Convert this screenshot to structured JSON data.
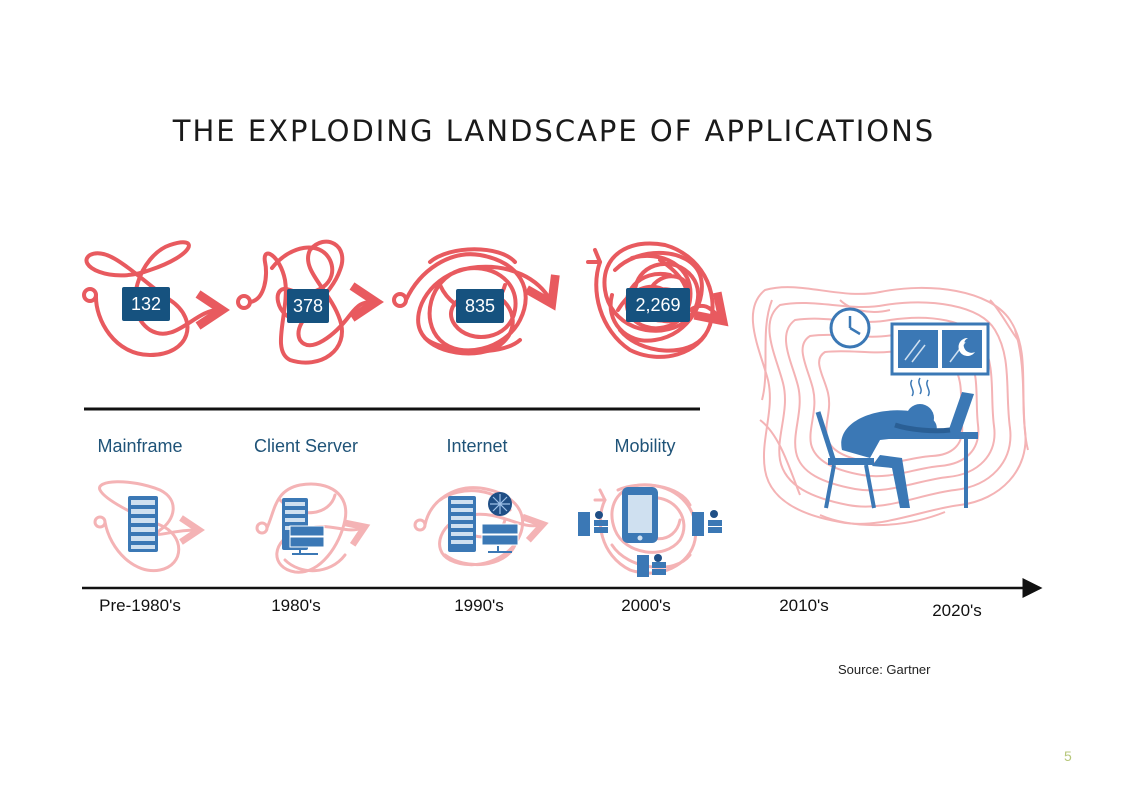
{
  "title": "THE EXPLODING LANDSCAPE OF APPLICATIONS",
  "counts": [
    "132",
    "378",
    "835",
    "2,269"
  ],
  "eras": [
    "Mainframe",
    "Client Server",
    "Internet",
    "Mobility"
  ],
  "years": [
    "Pre-1980's",
    "1980's",
    "1990's",
    "2000's",
    "2010's",
    "2020's"
  ],
  "source": "Source: Gartner",
  "page_number": "5",
  "colors": {
    "tangle_red": "#e85a5f",
    "tangle_pink": "#f4b3b5",
    "box_blue": "#16527f",
    "label_blue": "#1f5378",
    "icon_blue": "#3b78b5",
    "page_number": "#b7c77b"
  },
  "icons": [
    "tangle-icon",
    "server-rack-icon",
    "client-server-icon",
    "internet-globe-icon",
    "smartphone-icon",
    "exhausted-person-at-desk-icon",
    "clock-icon",
    "window-night-icon"
  ]
}
